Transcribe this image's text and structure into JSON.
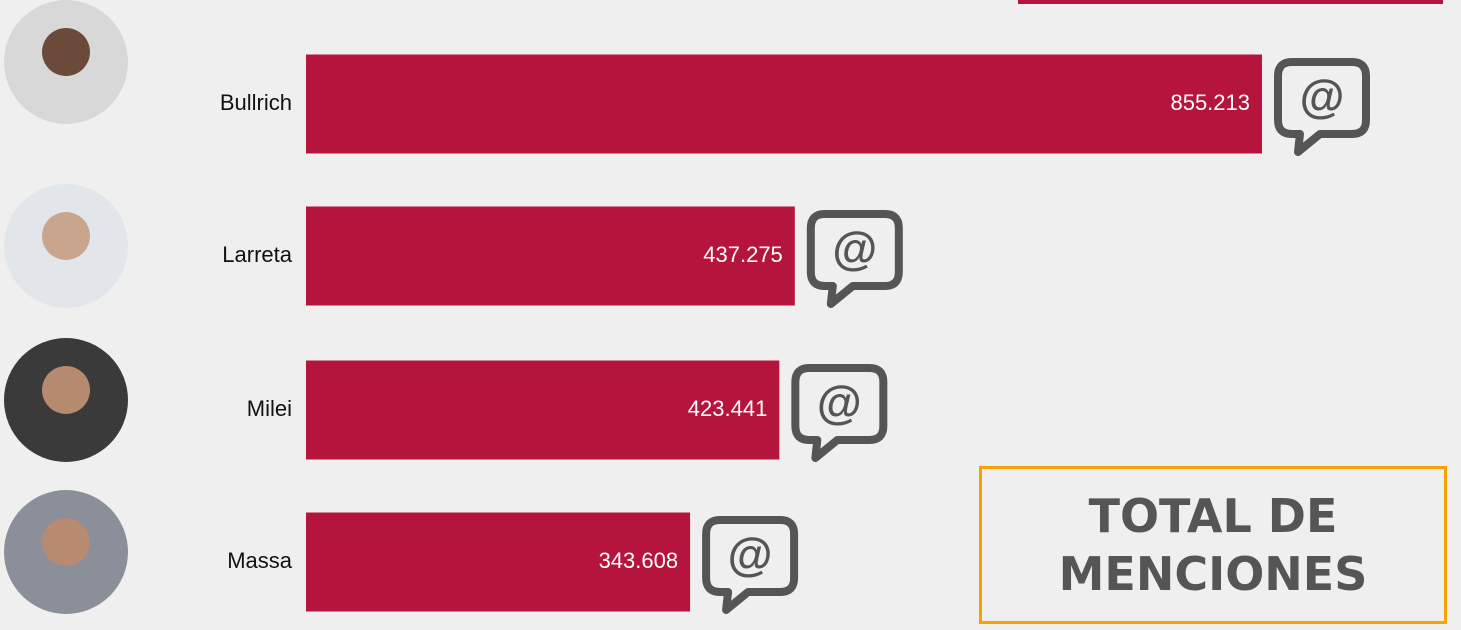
{
  "chart_data": {
    "type": "bar",
    "orientation": "horizontal",
    "title": "TOTAL DE MENCIONES",
    "categories": [
      "Bullrich",
      "Larreta",
      "Milei",
      "Massa"
    ],
    "values": [
      855213,
      437275,
      423441,
      343608
    ],
    "value_labels": [
      "855.213",
      "437.275",
      "423.441",
      "343.608"
    ],
    "color": "#b5153c"
  }
}
